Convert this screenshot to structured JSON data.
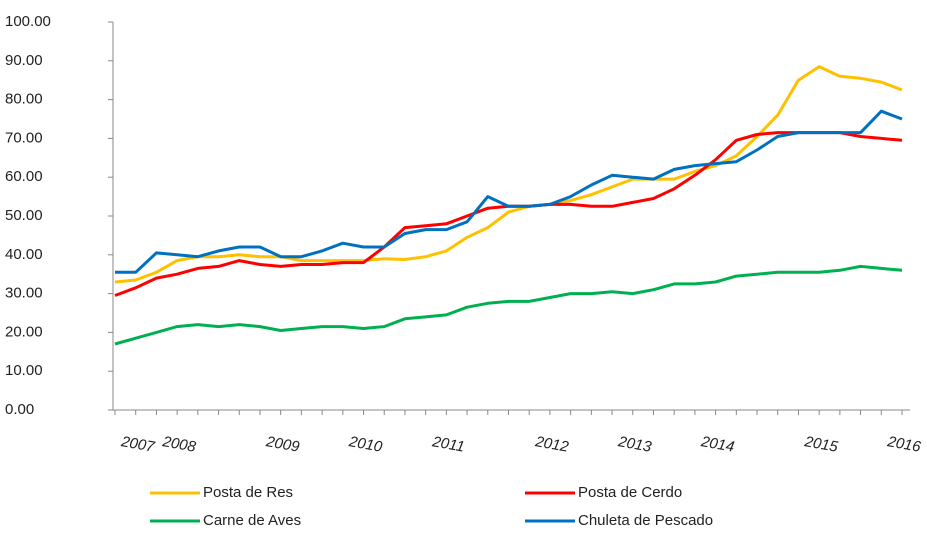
{
  "chart_data": {
    "type": "line",
    "categories": [
      null,
      "2007",
      null,
      "2008",
      null,
      null,
      null,
      null,
      "2009",
      null,
      null,
      null,
      "2010",
      null,
      null,
      null,
      "2011",
      null,
      null,
      null,
      null,
      "2012",
      null,
      null,
      null,
      "2013",
      null,
      null,
      null,
      "2014",
      null,
      null,
      null,
      null,
      "2015",
      null,
      null,
      null,
      "2016"
    ],
    "series": [
      {
        "name": "Posta de Res",
        "color": "#ffc000",
        "values": [
          33,
          33.5,
          35.5,
          38.5,
          39.5,
          39.5,
          40,
          39.5,
          39.5,
          38.5,
          38.5,
          38.5,
          38.5,
          39,
          38.8,
          39.5,
          41,
          44.5,
          47,
          51,
          52.5,
          53,
          54,
          55.5,
          57.5,
          59.5,
          59.5,
          59.5,
          61.5,
          63,
          65.5,
          70.5,
          76,
          85,
          88.5,
          86,
          85.5,
          84.5,
          82.5
        ]
      },
      {
        "name": "Posta de Cerdo",
        "color": "#ff0000",
        "values": [
          29.5,
          31.5,
          34,
          35,
          36.5,
          37,
          38.5,
          37.5,
          37,
          37.5,
          37.5,
          38,
          38,
          42,
          47,
          47.5,
          48,
          50,
          52,
          52.5,
          52.5,
          53,
          53,
          52.5,
          52.5,
          53.5,
          54.5,
          57,
          60.5,
          64.5,
          69.5,
          71,
          71.5,
          71.5,
          71.5,
          71.5,
          70.5,
          70,
          69.5
        ]
      },
      {
        "name": "Carne de Aves",
        "color": "#00b050",
        "values": [
          17,
          18.5,
          20,
          21.5,
          22,
          21.5,
          22,
          21.5,
          20.5,
          21,
          21.5,
          21.5,
          21,
          21.5,
          23.5,
          24,
          24.5,
          26.5,
          27.5,
          28,
          28,
          29,
          30,
          30,
          30.5,
          30,
          31,
          32.5,
          32.5,
          33,
          34.5,
          35,
          35.5,
          35.5,
          35.5,
          36,
          37,
          36.5,
          36
        ]
      },
      {
        "name": "Chuleta de Pescado",
        "color": "#0070c0",
        "values": [
          35.5,
          35.5,
          40.5,
          40,
          39.5,
          41,
          42,
          42,
          39.5,
          39.5,
          41,
          43,
          42,
          42,
          45.5,
          46.5,
          46.5,
          48.5,
          55,
          52.5,
          52.5,
          53,
          55,
          58,
          60.5,
          60,
          59.5,
          62,
          63,
          63.5,
          64,
          67,
          70.5,
          71.5,
          71.5,
          71.5,
          71.5,
          77,
          75
        ]
      }
    ],
    "ylim": [
      0,
      100
    ],
    "yticks": [
      {
        "value": 0,
        "label": "0.00"
      },
      {
        "value": 10,
        "label": "10.00"
      },
      {
        "value": 20,
        "label": "20.00"
      },
      {
        "value": 30,
        "label": "30.00"
      },
      {
        "value": 40,
        "label": "40.00"
      },
      {
        "value": 50,
        "label": "50.00"
      },
      {
        "value": 60,
        "label": "60.00"
      },
      {
        "value": 70,
        "label": "70.00"
      },
      {
        "value": 80,
        "label": "80.00"
      },
      {
        "value": 90,
        "label": "90.00"
      },
      {
        "value": 100,
        "label": "100.00"
      }
    ],
    "grid": false,
    "legend": "bottom"
  }
}
